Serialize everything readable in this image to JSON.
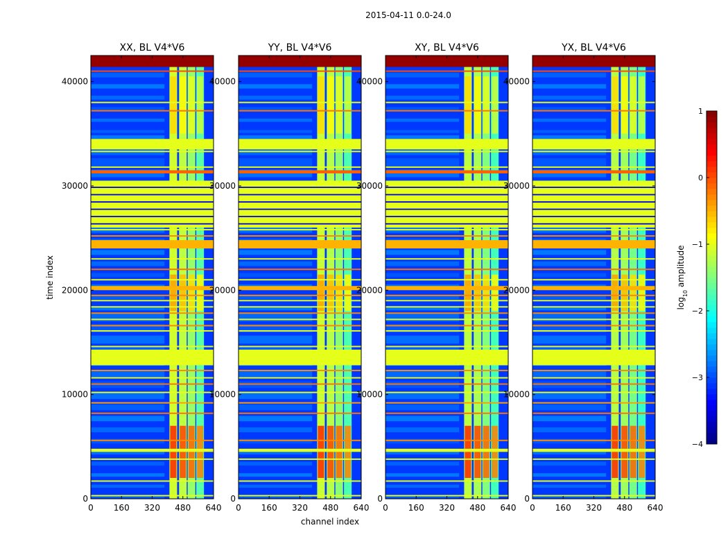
{
  "figure_title": "2015-04-11 0.0-24.0",
  "chart_data": {
    "type": "heatmap",
    "title": "2015-04-11 0.0-24.0",
    "xlabel": "channel index",
    "ylabel": "time index",
    "xlim": [
      0,
      640
    ],
    "ylim": [
      0,
      42500
    ],
    "x_ticks": [
      0,
      160,
      320,
      480,
      640
    ],
    "y_ticks": [
      0,
      10000,
      20000,
      30000,
      40000
    ],
    "colorbar": {
      "label_main": "log",
      "label_sub": "10",
      "label_rest": " amplitude",
      "range": [
        -4,
        1
      ],
      "ticks": [
        "1",
        "0",
        "−1",
        "−2",
        "−3",
        "−4"
      ],
      "tick_values": [
        1,
        0,
        -1,
        -2,
        -3,
        -4
      ]
    },
    "colormap": "jet",
    "panels": [
      {
        "title": "XX, BL V4*V6",
        "rfi_band": [
          410,
          605
        ]
      },
      {
        "title": "YY, BL V4*V6",
        "rfi_band": [
          410,
          605
        ]
      },
      {
        "title": "XY, BL V4*V6",
        "rfi_band": [
          410,
          605
        ]
      },
      {
        "title": "YX, BL V4*V6",
        "rfi_band": [
          410,
          605
        ]
      }
    ],
    "rfi_columns": [
      {
        "x0": 410,
        "x1": 450,
        "level": -1.1
      },
      {
        "x0": 460,
        "x1": 500,
        "level": -1.2
      },
      {
        "x0": 505,
        "x1": 545,
        "level": -1.4
      },
      {
        "x0": 550,
        "x1": 590,
        "level": -1.7
      }
    ],
    "flagged_bands": [
      {
        "t0": 41400,
        "t1": 42500,
        "level": 0.9
      },
      {
        "t0": 33500,
        "t1": 34500,
        "level": -1.0
      },
      {
        "t0": 31200,
        "t1": 31500,
        "level": -0.1
      },
      {
        "t0": 26000,
        "t1": 30500,
        "level": -1.0
      },
      {
        "t0": 24000,
        "t1": 24800,
        "level": -0.5
      },
      {
        "t0": 20000,
        "t1": 20400,
        "level": -0.5
      },
      {
        "t0": 12800,
        "t1": 14300,
        "level": -1.0
      },
      {
        "t0": 4500,
        "t1": 4800,
        "level": -1.0
      }
    ],
    "stripe_lines": [
      {
        "t": 41000,
        "level": 0.0
      },
      {
        "t": 38000,
        "level": -1.0
      },
      {
        "t": 37200,
        "level": -0.2
      },
      {
        "t": 33300,
        "level": -1.0
      },
      {
        "t": 31800,
        "level": -1.0
      },
      {
        "t": 25800,
        "level": -1.0
      },
      {
        "t": 25200,
        "level": -0.3
      },
      {
        "t": 23000,
        "level": -1.0
      },
      {
        "t": 22000,
        "level": -0.2
      },
      {
        "t": 21000,
        "level": -1.0
      },
      {
        "t": 19500,
        "level": -0.3
      },
      {
        "t": 19000,
        "level": -1.0
      },
      {
        "t": 18400,
        "level": -1.0
      },
      {
        "t": 17800,
        "level": -0.3
      },
      {
        "t": 17200,
        "level": -1.0
      },
      {
        "t": 16600,
        "level": -0.3
      },
      {
        "t": 16100,
        "level": -1.0
      },
      {
        "t": 14600,
        "level": -1.0
      },
      {
        "t": 12300,
        "level": -0.3
      },
      {
        "t": 11600,
        "level": -1.0
      },
      {
        "t": 11000,
        "level": -0.2
      },
      {
        "t": 10200,
        "level": -1.0
      },
      {
        "t": 9200,
        "level": -0.4
      },
      {
        "t": 8200,
        "level": -0.2
      },
      {
        "t": 5600,
        "level": -0.3
      },
      {
        "t": 3800,
        "level": -1.0
      },
      {
        "t": 1700,
        "level": -1.0
      },
      {
        "t": 300,
        "level": -1.0
      }
    ],
    "hot_regions": [
      {
        "t0": 2000,
        "t1": 7000,
        "level": 0.2
      },
      {
        "t0": 18000,
        "t1": 21500,
        "level": -0.4
      },
      {
        "t0": 35000,
        "t1": 40500,
        "level": -0.7
      }
    ]
  }
}
